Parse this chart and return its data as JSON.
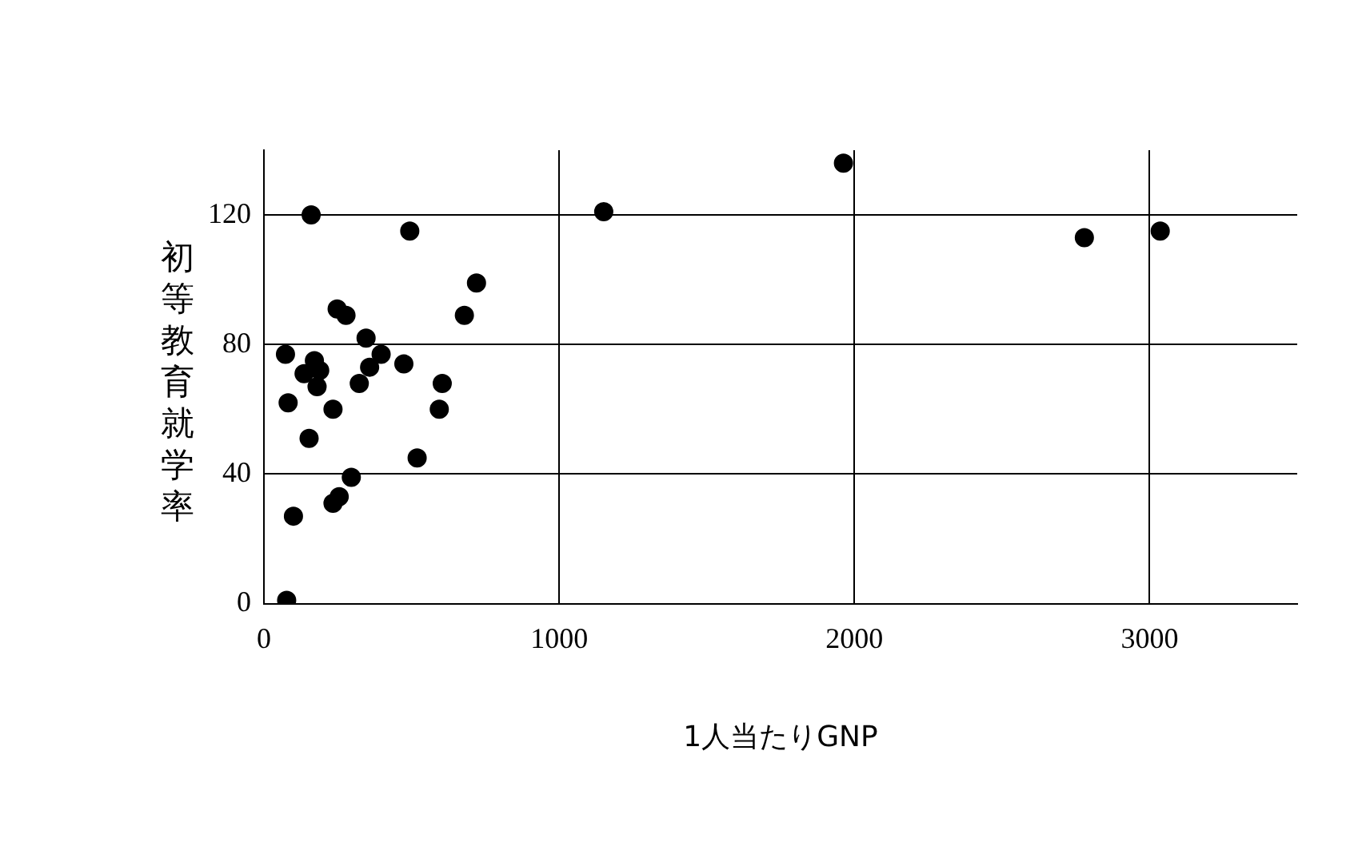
{
  "chart_data": {
    "type": "scatter",
    "xlabel": "1人当たりGNP",
    "ylabel": "初等教育就学率",
    "x": [
      160,
      494,
      720,
      679,
      248,
      278,
      346,
      73,
      171,
      136,
      180,
      189,
      397,
      358,
      323,
      474,
      604,
      594,
      82,
      234,
      153,
      519,
      296,
      234,
      255,
      100,
      77,
      1151,
      1963,
      2779,
      3036
    ],
    "values": [
      120,
      115,
      99,
      89,
      91,
      89,
      82,
      77,
      75,
      71,
      67,
      72,
      77,
      73,
      68,
      74,
      68,
      60,
      62,
      60,
      51,
      45,
      39,
      31,
      33,
      27,
      1,
      121,
      136,
      113,
      115
    ],
    "color": "#000000",
    "marker": "circle",
    "xlim": [
      0,
      3500
    ],
    "xticks": [
      0,
      1000,
      2000,
      3000
    ],
    "ylim": [
      0,
      140
    ],
    "yticks": [
      0,
      40,
      80,
      120
    ],
    "grid": true,
    "legend": false
  }
}
